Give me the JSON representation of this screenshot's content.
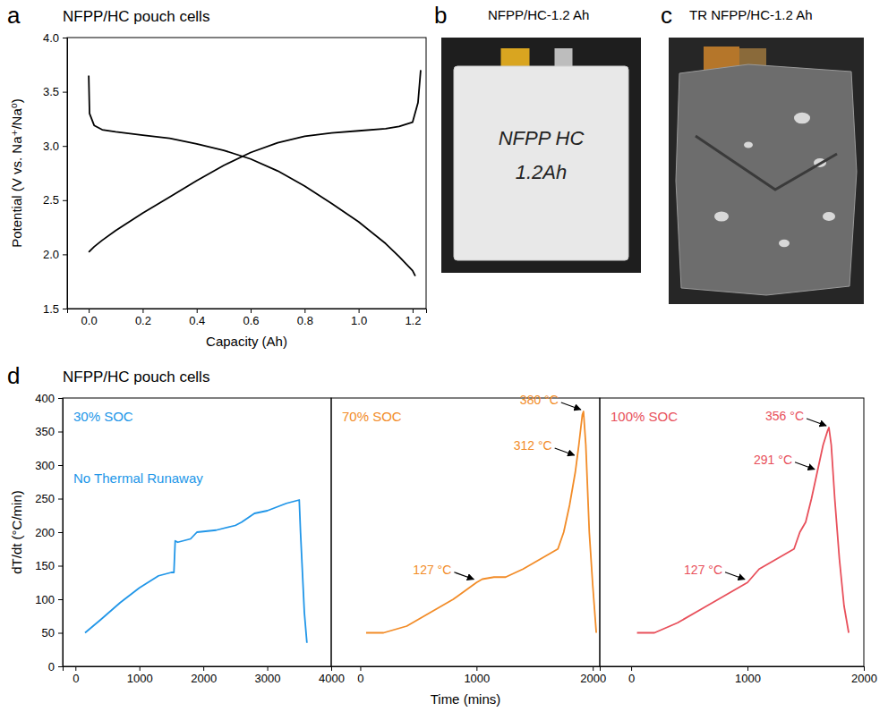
{
  "chart_data": [
    {
      "panel": "a",
      "title": "NFPP/HC pouch cells",
      "type": "line",
      "xlabel": "Capacity (Ah)",
      "ylabel": "Potential (V vs. Na⁺/Na⁰)",
      "xlim": [
        -0.08,
        1.25
      ],
      "xticks": [
        {
          "value": 0,
          "label": "0.0"
        },
        0.2,
        0.4,
        0.6,
        0.8,
        {
          "value": 1,
          "label": "1.0"
        },
        1.2
      ],
      "ylim": [
        1.5,
        4.0
      ],
      "yticks": [
        1.5,
        {
          "value": 2,
          "label": "2.0"
        },
        2.5,
        {
          "value": 3,
          "label": "3.0"
        },
        3.5,
        {
          "value": 4,
          "label": "4.0"
        }
      ],
      "series": [
        {
          "color": "#000000",
          "x": [
            0,
            0.02,
            0.05,
            0.1,
            0.15,
            0.2,
            0.3,
            0.4,
            0.5,
            0.6,
            0.7,
            0.8,
            0.9,
            1.0,
            1.1,
            1.15,
            1.2,
            1.22,
            1.23
          ],
          "values": [
            2.02,
            2.07,
            2.13,
            2.22,
            2.3,
            2.38,
            2.53,
            2.68,
            2.82,
            2.94,
            3.03,
            3.09,
            3.12,
            3.14,
            3.16,
            3.18,
            3.22,
            3.4,
            3.7
          ]
        },
        {
          "color": "#000000",
          "x": [
            0,
            0.003,
            0.02,
            0.05,
            0.1,
            0.2,
            0.3,
            0.4,
            0.5,
            0.6,
            0.7,
            0.8,
            0.9,
            1.0,
            1.1,
            1.15,
            1.2,
            1.21
          ],
          "values": [
            3.65,
            3.3,
            3.19,
            3.15,
            3.13,
            3.1,
            3.07,
            3.02,
            2.96,
            2.88,
            2.77,
            2.63,
            2.47,
            2.3,
            2.1,
            1.98,
            1.85,
            1.8
          ]
        }
      ]
    },
    {
      "panel": "d",
      "title": "NFPP/HC pouch cells",
      "type": "line",
      "ylabel": "dT/dt (°C/min)",
      "label": "30% SOC",
      "note": "No Thermal Runaway",
      "xlim": [
        -200,
        4000
      ],
      "xticks": [
        0,
        1000,
        2000,
        3000,
        4000
      ],
      "ylim": [
        0,
        400
      ],
      "yticks": [
        0,
        50,
        100,
        150,
        200,
        250,
        300,
        350,
        400
      ],
      "series": [
        {
          "color": "#2196e8",
          "x": [
            150,
            400,
            700,
            1000,
            1300,
            1500,
            1540,
            1560,
            1600,
            1800,
            1900,
            2200,
            2500,
            2600,
            2800,
            3000,
            3300,
            3500,
            3520,
            3580,
            3620
          ],
          "values": [
            50,
            70,
            95,
            117,
            135,
            140,
            140,
            187,
            185,
            190,
            200,
            203,
            210,
            215,
            228,
            232,
            243,
            248,
            200,
            80,
            35
          ]
        }
      ]
    },
    {
      "type": "line",
      "label": "70% SOC",
      "xlabel": "Time (mins)",
      "tick_labels": "x",
      "xlim": [
        -250,
        2060
      ],
      "xticks": [
        0,
        1000,
        2000
      ],
      "ylim": [
        0,
        400
      ],
      "series": [
        {
          "color": "#f28c28",
          "x": [
            50,
            200,
            400,
            600,
            800,
            1000,
            1050,
            1150,
            1250,
            1400,
            1500,
            1600,
            1700,
            1750,
            1800,
            1850,
            1880,
            1910,
            1920,
            1940,
            1970,
            2000,
            2030
          ],
          "values": [
            50,
            50,
            60,
            80,
            100,
            125,
            130,
            133,
            133,
            145,
            155,
            165,
            175,
            200,
            240,
            290,
            330,
            375,
            380,
            330,
            200,
            120,
            50
          ]
        }
      ],
      "annotations": [
        {
          "text": "127 °C",
          "x": 1000,
          "y": 127
        },
        {
          "text": "312 °C",
          "x": 1865,
          "y": 312
        },
        {
          "text": "380 °C",
          "x": 1920,
          "y": 380
        }
      ]
    },
    {
      "type": "line",
      "label": "100% SOC",
      "tick_labels": "x",
      "xlim": [
        -270,
        2000
      ],
      "xticks": [
        0,
        1000,
        2000
      ],
      "ylim": [
        0,
        400
      ],
      "series": [
        {
          "color": "#e8505b",
          "x": [
            50,
            200,
            400,
            600,
            800,
            1000,
            1050,
            1100,
            1200,
            1300,
            1400,
            1450,
            1500,
            1550,
            1600,
            1650,
            1690,
            1700,
            1720,
            1750,
            1790,
            1830,
            1870
          ],
          "values": [
            50,
            50,
            65,
            85,
            105,
            125,
            135,
            145,
            155,
            165,
            175,
            200,
            215,
            250,
            290,
            330,
            352,
            356,
            330,
            250,
            160,
            90,
            50
          ]
        }
      ],
      "annotations": [
        {
          "text": "127 °C",
          "x": 1000,
          "y": 127
        },
        {
          "text": "291 °C",
          "x": 1600,
          "y": 291
        },
        {
          "text": "356 °C",
          "x": 1700,
          "y": 356
        }
      ]
    }
  ],
  "photos": [
    {
      "panel": "b",
      "title": "NFPP/HC-1.2 Ah",
      "texts": [
        "NFPP HC",
        "1.2Ah"
      ]
    },
    {
      "panel": "c",
      "title": "TR NFPP/HC-1.2 Ah"
    }
  ]
}
